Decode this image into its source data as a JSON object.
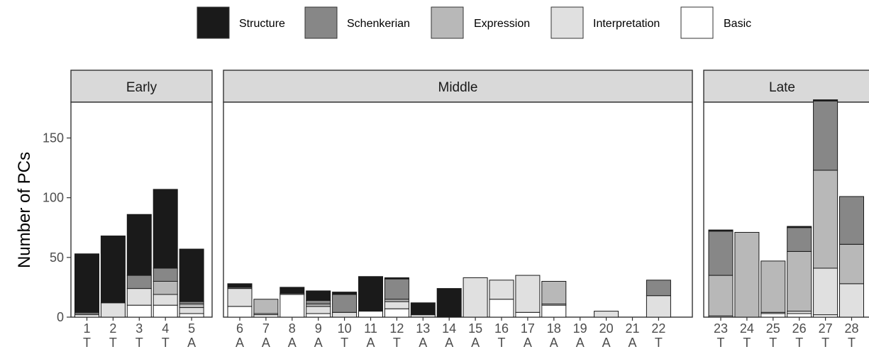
{
  "chart_data": {
    "type": "bar",
    "stacked": true,
    "ylabel": "Number of PCs",
    "ylim": [
      0,
      180
    ],
    "yticks": [
      0,
      50,
      100,
      150
    ],
    "grid": false,
    "legend_position": "top",
    "legend": [
      {
        "name": "Structure",
        "color": "#1a1a1a"
      },
      {
        "name": "Schenkerian",
        "color": "#878787"
      },
      {
        "name": "Expression",
        "color": "#b8b8b8"
      },
      {
        "name": "Interpretation",
        "color": "#e0e0e0"
      },
      {
        "name": "Basic",
        "color": "#ffffff"
      }
    ],
    "panels": [
      {
        "label": "Early",
        "categories": [
          {
            "x": "1",
            "sub": "T",
            "Basic": 2,
            "Interpretation": 1,
            "Expression": 1,
            "Schenkerian": 0,
            "Structure": 49
          },
          {
            "x": "2",
            "sub": "T",
            "Basic": 0,
            "Interpretation": 12,
            "Expression": 0,
            "Schenkerian": 0,
            "Structure": 56
          },
          {
            "x": "3",
            "sub": "T",
            "Basic": 10,
            "Interpretation": 14,
            "Expression": 0,
            "Schenkerian": 11,
            "Structure": 51
          },
          {
            "x": "4",
            "sub": "T",
            "Basic": 10,
            "Interpretation": 9,
            "Expression": 11,
            "Schenkerian": 11,
            "Structure": 66
          },
          {
            "x": "5",
            "sub": "A",
            "Basic": 3,
            "Interpretation": 5,
            "Expression": 3,
            "Schenkerian": 2,
            "Structure": 44
          }
        ]
      },
      {
        "label": "Middle",
        "categories": [
          {
            "x": "6",
            "sub": "A",
            "Basic": 9,
            "Interpretation": 15,
            "Expression": 0,
            "Schenkerian": 1,
            "Structure": 3
          },
          {
            "x": "7",
            "sub": "A",
            "Basic": 2,
            "Interpretation": 1,
            "Expression": 12,
            "Schenkerian": 0,
            "Structure": 0
          },
          {
            "x": "8",
            "sub": "A",
            "Basic": 19,
            "Interpretation": 0,
            "Expression": 0,
            "Schenkerian": 1,
            "Structure": 5
          },
          {
            "x": "9",
            "sub": "A",
            "Basic": 3,
            "Interpretation": 6,
            "Expression": 2,
            "Schenkerian": 3,
            "Structure": 8
          },
          {
            "x": "10",
            "sub": "T",
            "Basic": 0,
            "Interpretation": 4,
            "Expression": 0,
            "Schenkerian": 15,
            "Structure": 2
          },
          {
            "x": "11",
            "sub": "A",
            "Basic": 5,
            "Interpretation": 0,
            "Expression": 0,
            "Schenkerian": 0,
            "Structure": 29
          },
          {
            "x": "12",
            "sub": "T",
            "Basic": 7,
            "Interpretation": 6,
            "Expression": 2,
            "Schenkerian": 17,
            "Structure": 1
          },
          {
            "x": "13",
            "sub": "A",
            "Basic": 0,
            "Interpretation": 2,
            "Expression": 0,
            "Schenkerian": 0,
            "Structure": 10
          },
          {
            "x": "14",
            "sub": "A",
            "Basic": 0,
            "Interpretation": 0,
            "Expression": 0,
            "Schenkerian": 0,
            "Structure": 24
          },
          {
            "x": "15",
            "sub": "A",
            "Basic": 0,
            "Interpretation": 33,
            "Expression": 0,
            "Schenkerian": 0,
            "Structure": 0
          },
          {
            "x": "16",
            "sub": "T",
            "Basic": 15,
            "Interpretation": 16,
            "Expression": 0,
            "Schenkerian": 0,
            "Structure": 0
          },
          {
            "x": "17",
            "sub": "A",
            "Basic": 4,
            "Interpretation": 31,
            "Expression": 0,
            "Schenkerian": 0,
            "Structure": 0
          },
          {
            "x": "18",
            "sub": "A",
            "Basic": 10,
            "Interpretation": 1,
            "Expression": 19,
            "Schenkerian": 0,
            "Structure": 0
          },
          {
            "x": "19",
            "sub": "A",
            "Basic": 0,
            "Interpretation": 0,
            "Expression": 0,
            "Schenkerian": 0,
            "Structure": 0
          },
          {
            "x": "20",
            "sub": "A",
            "Basic": 0,
            "Interpretation": 5,
            "Expression": 0,
            "Schenkerian": 0,
            "Structure": 0
          },
          {
            "x": "21",
            "sub": "A",
            "Basic": 0,
            "Interpretation": 0,
            "Expression": 0,
            "Schenkerian": 0,
            "Structure": 0
          },
          {
            "x": "22",
            "sub": "T",
            "Basic": 0,
            "Interpretation": 18,
            "Expression": 0,
            "Schenkerian": 13,
            "Structure": 0
          }
        ]
      },
      {
        "label": "Late",
        "categories": [
          {
            "x": "23",
            "sub": "T",
            "Basic": 0,
            "Interpretation": 1,
            "Expression": 34,
            "Schenkerian": 37,
            "Structure": 1
          },
          {
            "x": "24",
            "sub": "T",
            "Basic": 0,
            "Interpretation": 0,
            "Expression": 71,
            "Schenkerian": 0,
            "Structure": 0
          },
          {
            "x": "25",
            "sub": "T",
            "Basic": 3,
            "Interpretation": 1,
            "Expression": 43,
            "Schenkerian": 0,
            "Structure": 0
          },
          {
            "x": "26",
            "sub": "T",
            "Basic": 3,
            "Interpretation": 2,
            "Expression": 50,
            "Schenkerian": 20,
            "Structure": 1
          },
          {
            "x": "27",
            "sub": "T",
            "Basic": 2,
            "Interpretation": 39,
            "Expression": 82,
            "Schenkerian": 58,
            "Structure": 1
          },
          {
            "x": "28",
            "sub": "T",
            "Basic": 0,
            "Interpretation": 28,
            "Expression": 33,
            "Schenkerian": 40,
            "Structure": 0
          }
        ]
      }
    ]
  }
}
